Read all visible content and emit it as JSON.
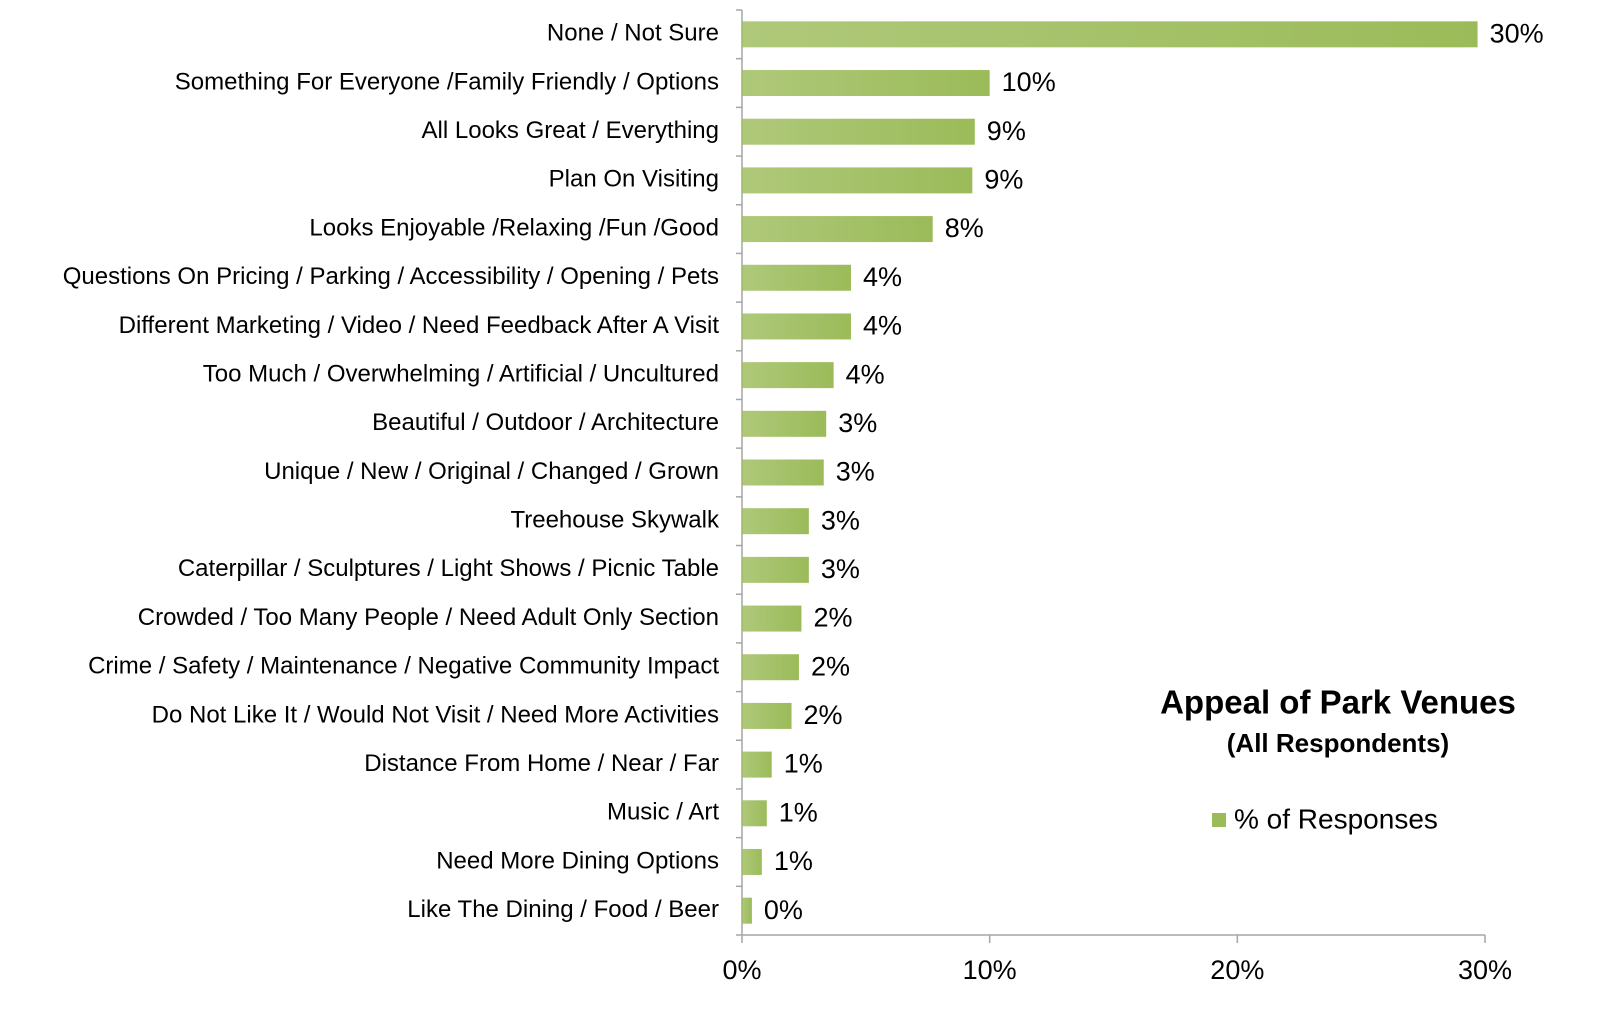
{
  "chart_data": {
    "type": "bar",
    "orientation": "horizontal",
    "title": "Appeal of Park Venues",
    "subtitle": "(All Respondents)",
    "categories": [
      "None / Not Sure",
      "Something For Everyone /Family Friendly / Options",
      "All Looks Great / Everything",
      "Plan On Visiting",
      "Looks Enjoyable /Relaxing /Fun /Good",
      "Questions On Pricing / Parking / Accessibility / Opening / Pets",
      "Different Marketing / Video / Need Feedback After A Visit",
      "Too Much / Overwhelming / Artificial / Uncultured",
      "Beautiful / Outdoor / Architecture",
      "Unique / New / Original / Changed / Grown",
      "Treehouse Skywalk",
      "Caterpillar / Sculptures / Light Shows / Picnic Table",
      "Crowded / Too Many People / Need Adult Only Section",
      "Crime / Safety / Maintenance / Negative Community Impact",
      "Do Not Like It / Would Not Visit / Need More Activities",
      "Distance From Home / Near / Far",
      "Music / Art",
      "Need More Dining Options",
      "Like The Dining / Food / Beer"
    ],
    "series": [
      {
        "name": "% of Responses",
        "color": "#9bbb59",
        "values": [
          29.7,
          10.0,
          9.4,
          9.3,
          7.7,
          4.4,
          4.4,
          3.7,
          3.4,
          3.3,
          2.7,
          2.7,
          2.4,
          2.3,
          2.0,
          1.2,
          1.0,
          0.8,
          0.4
        ],
        "value_labels": [
          "30%",
          "10%",
          "9%",
          "9%",
          "8%",
          "4%",
          "4%",
          "4%",
          "3%",
          "3%",
          "3%",
          "3%",
          "2%",
          "2%",
          "2%",
          "1%",
          "1%",
          "1%",
          "0%"
        ]
      }
    ],
    "xlim": [
      0,
      30
    ],
    "xticks": [
      {
        "value": 0,
        "label": "0%"
      },
      {
        "value": 10,
        "label": "10%"
      },
      {
        "value": 20,
        "label": "20%"
      },
      {
        "value": 30,
        "label": "30%"
      }
    ],
    "legend": "right"
  }
}
